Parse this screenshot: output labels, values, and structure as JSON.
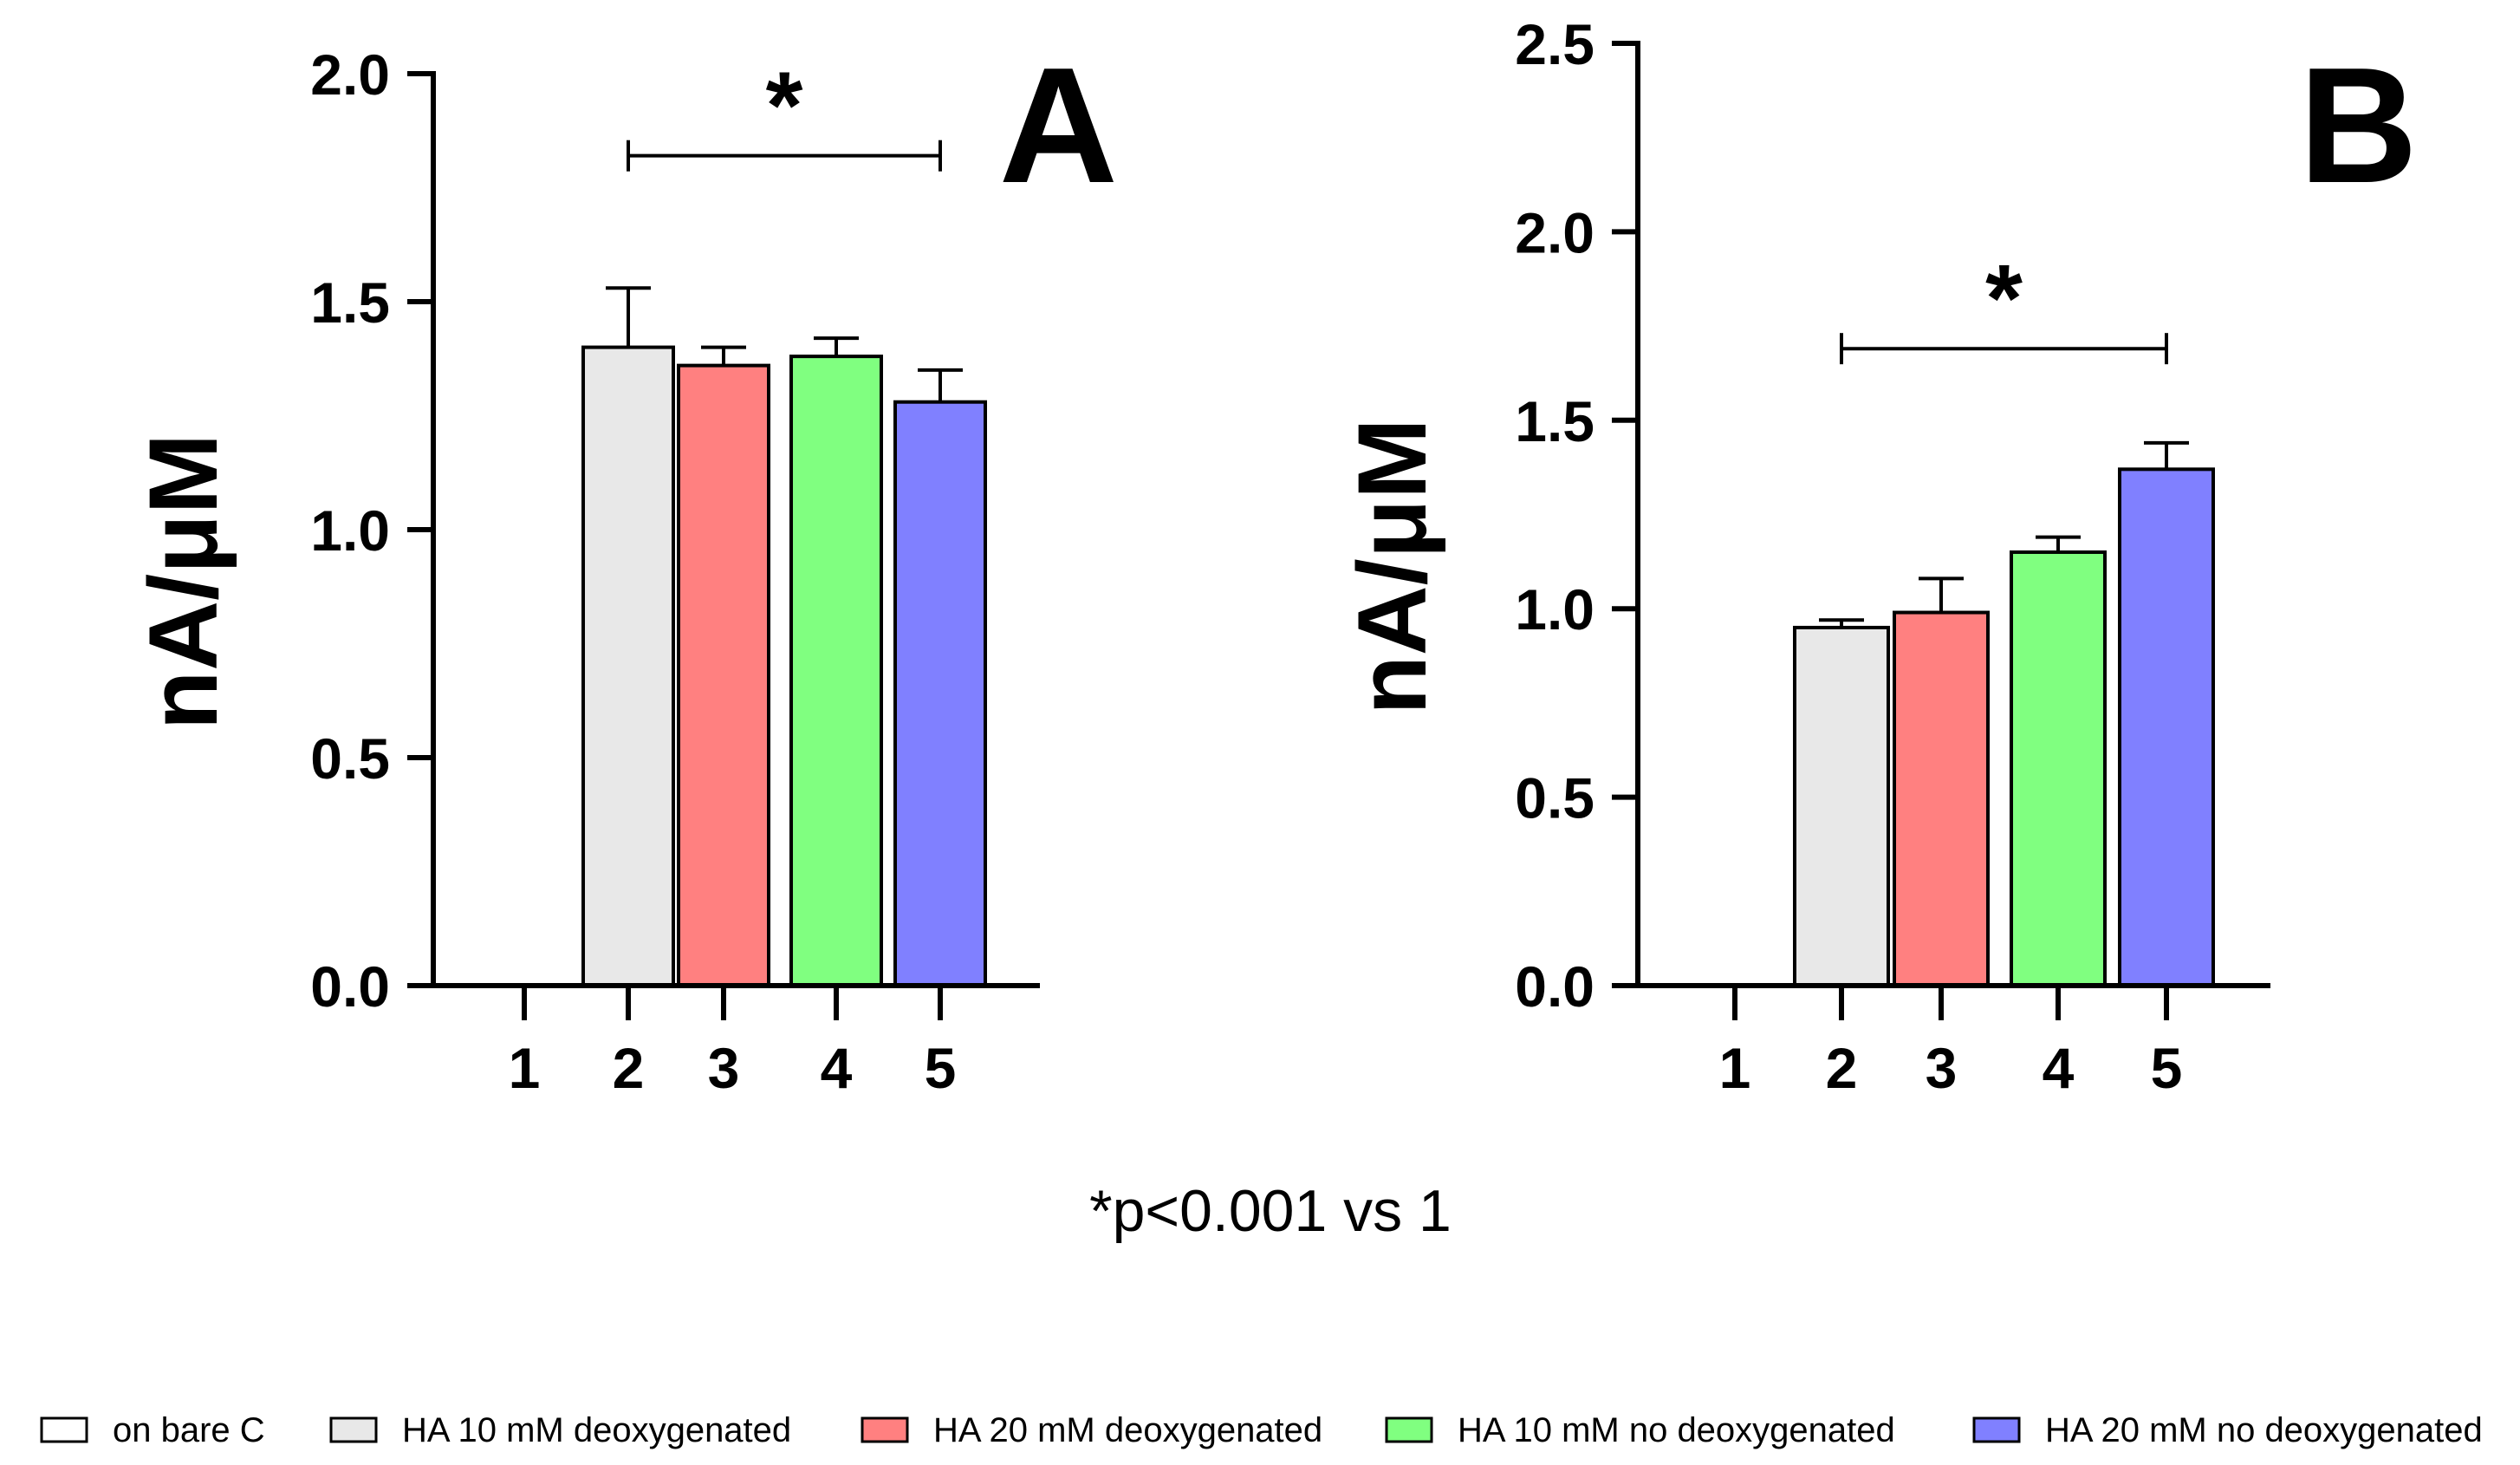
{
  "chart_data": [
    {
      "type": "bar",
      "panel_label": "A",
      "ylabel": "nA/μM",
      "xlabel": "",
      "ylim": [
        0,
        2.0
      ],
      "yticks": [
        "0.0",
        "0.5",
        "1.0",
        "1.5",
        "2.0"
      ],
      "categories": [
        "1",
        "2",
        "3",
        "4",
        "5"
      ],
      "values": [
        0,
        1.4,
        1.36,
        1.38,
        1.28
      ],
      "errors": [
        0,
        0.13,
        0.04,
        0.04,
        0.07
      ],
      "colors": [
        "#ffffff",
        "#e8e8e8",
        "#ff8080",
        "#80ff80",
        "#8080ff"
      ],
      "significance": {
        "from": "2",
        "to": "5",
        "label": "*",
        "y": 1.82
      }
    },
    {
      "type": "bar",
      "panel_label": "B",
      "ylabel": "nA/μM",
      "xlabel": "",
      "ylim": [
        0,
        2.5
      ],
      "yticks": [
        "0.0",
        "0.5",
        "1.0",
        "1.5",
        "2.0",
        "2.5"
      ],
      "categories": [
        "1",
        "2",
        "3",
        "4",
        "5"
      ],
      "values": [
        0,
        0.95,
        0.99,
        1.15,
        1.37
      ],
      "errors": [
        0,
        0.02,
        0.09,
        0.04,
        0.07
      ],
      "colors": [
        "#ffffff",
        "#e8e8e8",
        "#ff8080",
        "#80ff80",
        "#8080ff"
      ],
      "significance": {
        "from": "2",
        "to": "5",
        "label": "*",
        "y": 1.69
      }
    }
  ],
  "footnote": "*p<0.001 vs 1",
  "legend": [
    {
      "label": "on bare C",
      "color": "#ffffff"
    },
    {
      "label": "HA 10 mM deoxygenated",
      "color": "#e8e8e8"
    },
    {
      "label": "HA 20 mM deoxygenated",
      "color": "#ff8080"
    },
    {
      "label": "HA 10 mM no deoxygenated",
      "color": "#80ff80"
    },
    {
      "label": "HA 20 mM no deoxygenated",
      "color": "#8080ff"
    }
  ]
}
